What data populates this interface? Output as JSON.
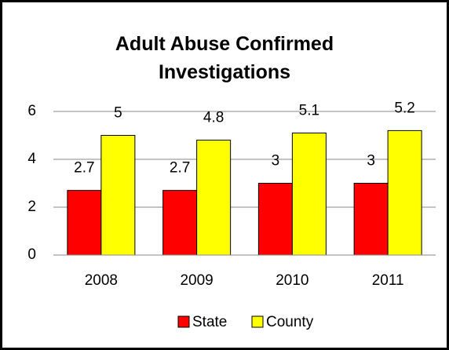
{
  "chart_data": {
    "type": "bar",
    "title": "Adult Abuse Confirmed Investigations",
    "categories": [
      "2008",
      "2009",
      "2010",
      "2011"
    ],
    "series": [
      {
        "name": "State",
        "color": "#ff0000",
        "values": [
          2.7,
          2.7,
          3,
          3
        ]
      },
      {
        "name": "County",
        "color": "#ffff00",
        "values": [
          5,
          4.8,
          5.1,
          5.2
        ]
      }
    ],
    "ylim": [
      0,
      6
    ],
    "yticks": [
      0,
      2,
      4,
      6
    ],
    "grid": true,
    "legend": "bottom"
  }
}
